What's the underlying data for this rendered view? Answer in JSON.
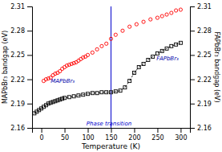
{
  "chart_data": {
    "type": "scatter",
    "xlabel": "Temperature (K)",
    "ylabel": "MAPbBr₃ bandgap (eV)",
    "y2label": "FAPbBr₃ bandgap (eV)",
    "xlim": [
      -20,
      320
    ],
    "xticks": [
      0,
      50,
      100,
      150,
      200,
      250,
      300
    ],
    "ylim": [
      2.16,
      2.31
    ],
    "yticks": [
      2.16,
      2.19,
      2.22,
      2.25,
      2.28,
      2.31
    ],
    "y2lim": [
      2.16,
      2.31
    ],
    "y2ticks": [
      2.16,
      2.19,
      2.22,
      2.25,
      2.28,
      2.31
    ],
    "grid": false,
    "series": [
      {
        "type": "scatter",
        "color": "#ff0000",
        "marker": "circle",
        "x": [
          5,
          10,
          15,
          20,
          25,
          30,
          35,
          40,
          45,
          50,
          55,
          60,
          65,
          70,
          75,
          80,
          85,
          90,
          95,
          100,
          110,
          120,
          130,
          140,
          150,
          160,
          175,
          190,
          205,
          220,
          235,
          250,
          260,
          270,
          280,
          290,
          300
        ],
        "values": [
          2.218,
          2.22,
          2.221,
          2.222,
          2.225,
          2.227,
          2.228,
          2.23,
          2.233,
          2.235,
          2.237,
          2.238,
          2.239,
          2.24,
          2.241,
          2.243,
          2.245,
          2.247,
          2.248,
          2.25,
          2.253,
          2.257,
          2.261,
          2.264,
          2.27,
          2.275,
          2.28,
          2.285,
          2.288,
          2.291,
          2.294,
          2.296,
          2.298,
          2.3,
          2.302,
          2.305,
          2.306
        ]
      },
      {
        "type": "line",
        "color": "#000000",
        "marker": "square",
        "line_style": "dashed",
        "axis": "y2",
        "x": [
          -15,
          -10,
          -5,
          0,
          5,
          10,
          15,
          20,
          25,
          30,
          35,
          40,
          45,
          50,
          60,
          70,
          80,
          90,
          100,
          110,
          120,
          130,
          140,
          150,
          160,
          170,
          180,
          190,
          200,
          210,
          220,
          230,
          240,
          250,
          260,
          270,
          280,
          290,
          300
        ],
        "values": [
          2.178,
          2.18,
          2.182,
          2.184,
          2.186,
          2.188,
          2.19,
          2.191,
          2.192,
          2.193,
          2.194,
          2.195,
          2.196,
          2.197,
          2.198,
          2.199,
          2.2,
          2.201,
          2.202,
          2.203,
          2.203,
          2.204,
          2.204,
          2.204,
          2.205,
          2.206,
          2.21,
          2.218,
          2.228,
          2.235,
          2.239,
          2.244,
          2.248,
          2.252,
          2.255,
          2.258,
          2.261,
          2.263,
          2.265
        ]
      }
    ],
    "reference_lines": [
      {
        "x": 150,
        "color": "#0000cc"
      }
    ],
    "annotations": [
      {
        "text": "Phase transition",
        "x": 97,
        "y": 2.1625,
        "color": "#0000cc"
      },
      {
        "text": "MAPbBr₃",
        "x": 20,
        "y": 2.2155,
        "color": "#0000aa"
      },
      {
        "text": "FAPbBr₃",
        "x": 248,
        "y": 2.2435,
        "color": "#0000aa",
        "axis": "y2"
      }
    ]
  }
}
